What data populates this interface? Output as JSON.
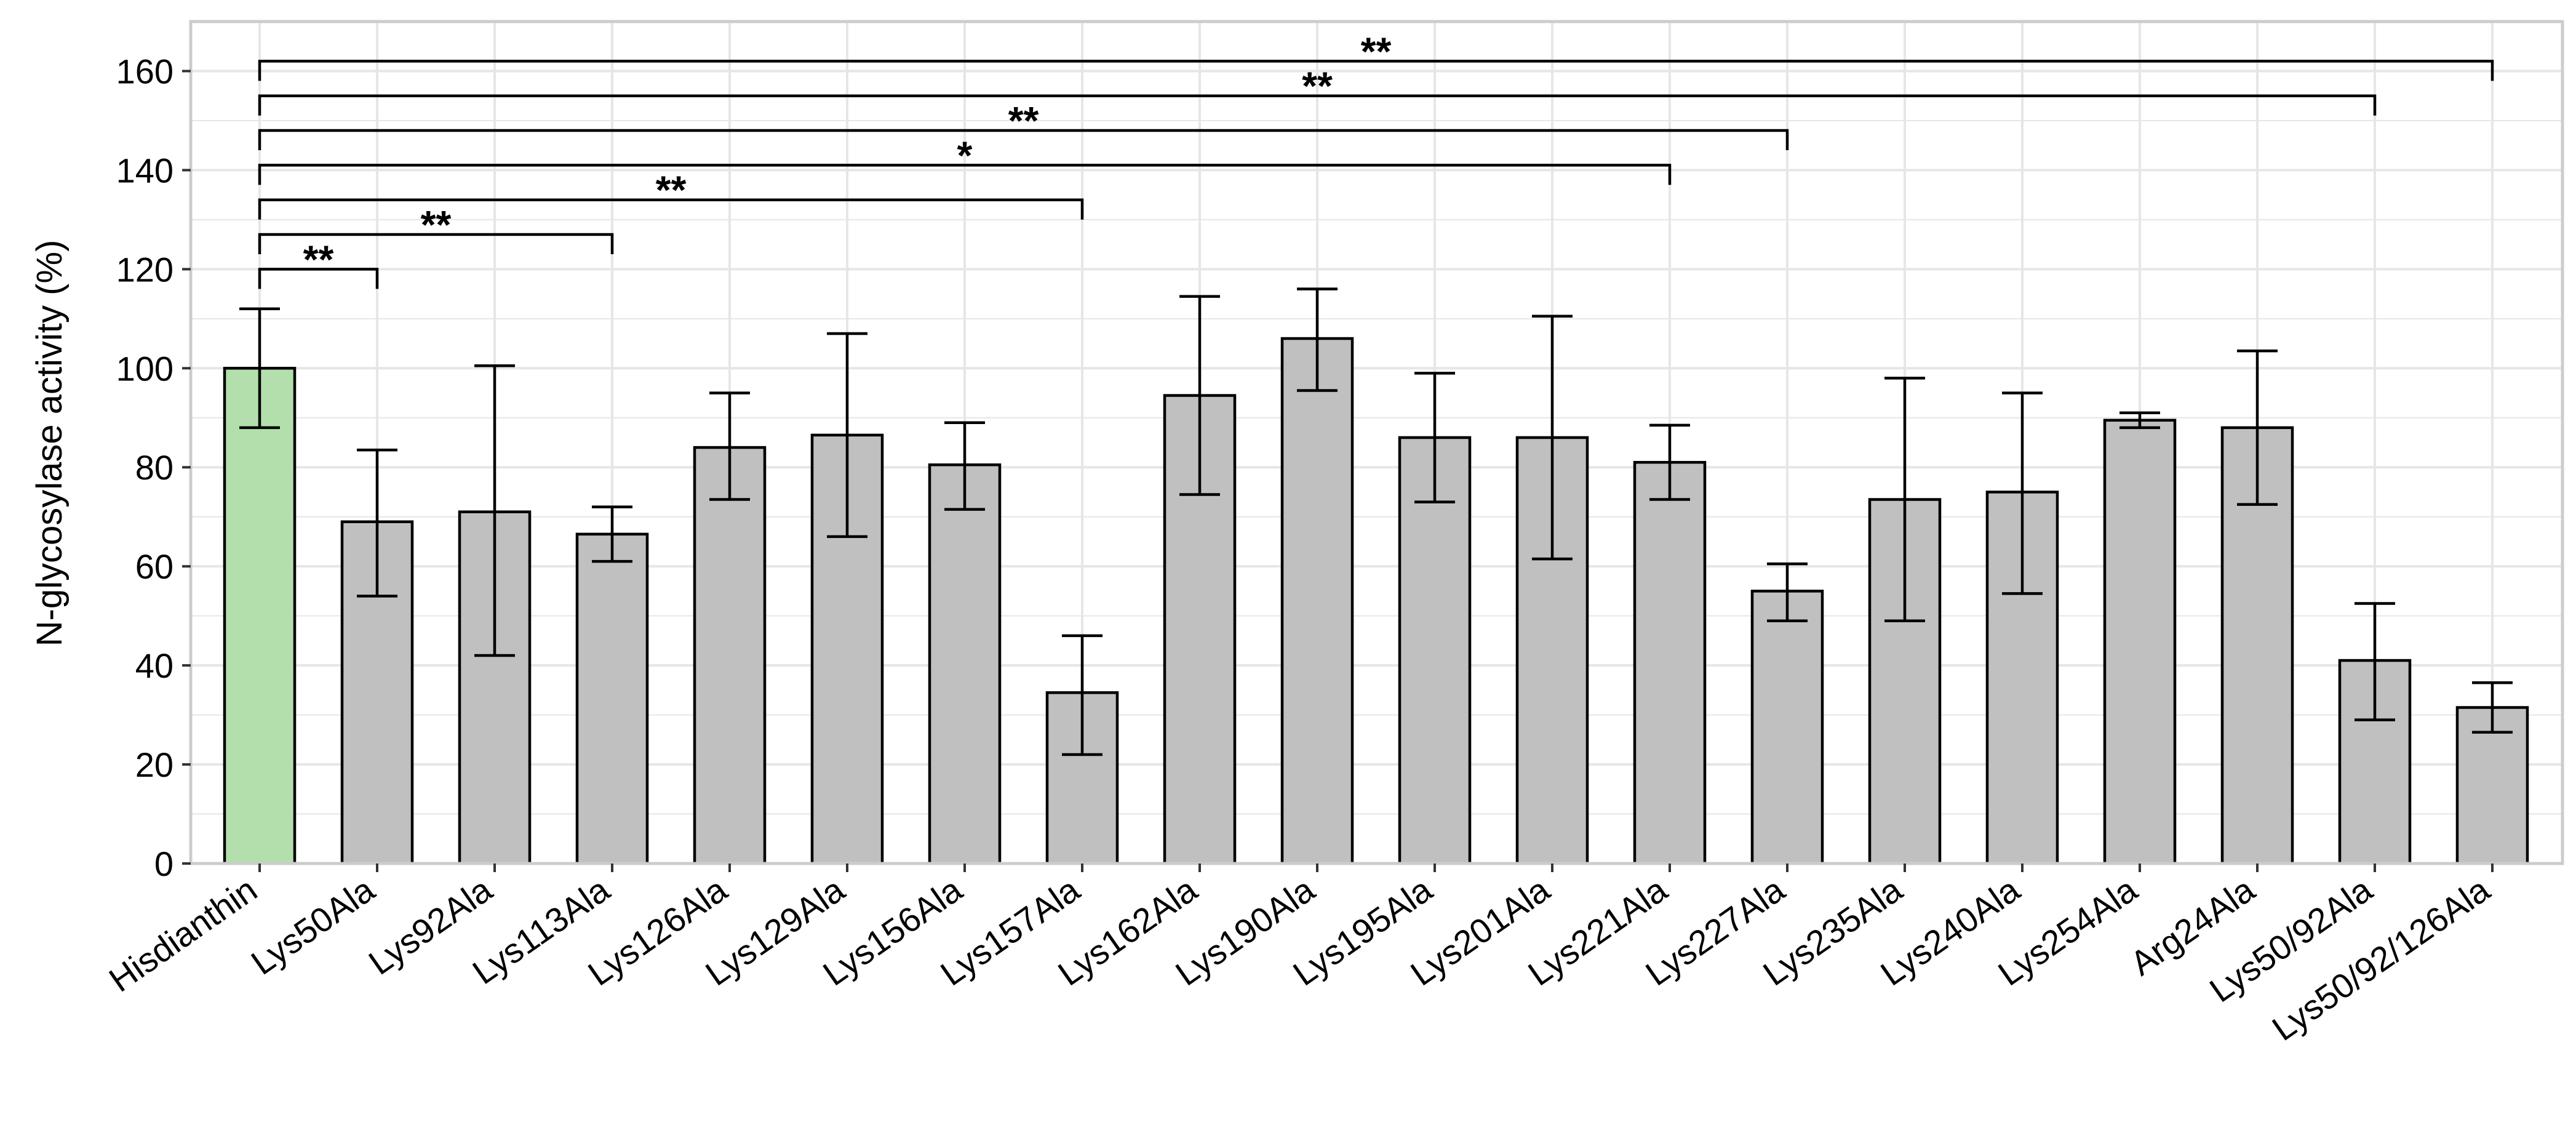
{
  "chart_data": {
    "type": "bar",
    "title": "",
    "xlabel": "",
    "ylabel": "N-glycosylase activity (%)",
    "ylim": [
      0,
      170
    ],
    "yticks": [
      0,
      20,
      40,
      60,
      80,
      100,
      120,
      140,
      160
    ],
    "grid": true,
    "categories": [
      "Hisdianthin",
      "Lys50Ala",
      "Lys92Ala",
      "Lys113Ala",
      "Lys126Ala",
      "Lys129Ala",
      "Lys156Ala",
      "Lys157Ala",
      "Lys162Ala",
      "Lys190Ala",
      "Lys195Ala",
      "Lys201Ala",
      "Lys221Ala",
      "Lys227Ala",
      "Lys235Ala",
      "Lys240Ala",
      "Lys254Ala",
      "Arg24Ala",
      "Lys50/92Ala",
      "Lys50/92/126Ala"
    ],
    "values": [
      100,
      69,
      71,
      66.5,
      84,
      86.5,
      80.5,
      34.5,
      94.5,
      106,
      86,
      86,
      81,
      55,
      73.5,
      75,
      89.5,
      88,
      41,
      31.5
    ],
    "error_upper": [
      112,
      83.5,
      100.5,
      72,
      95,
      107,
      89,
      46,
      114.5,
      116,
      99,
      110.5,
      88.5,
      60.5,
      98,
      95,
      91,
      103.5,
      52.5,
      36.5
    ],
    "error_lower": [
      88,
      54,
      42,
      61,
      73.5,
      66,
      71.5,
      22,
      74.5,
      95.5,
      73,
      61.5,
      73.5,
      49,
      49,
      54.5,
      88,
      72.5,
      29,
      26.5
    ],
    "colors": {
      "reference_bar": "#b2dfab",
      "mutant_bar": "#c0c0c0",
      "outline": "#000000",
      "grid": "#e6e6e6",
      "panel_border": "#cccccc"
    },
    "significance": [
      {
        "from": "Hisdianthin",
        "to": "Lys50Ala",
        "y": 120,
        "label": "**"
      },
      {
        "from": "Hisdianthin",
        "to": "Lys113Ala",
        "y": 127,
        "label": "**"
      },
      {
        "from": "Hisdianthin",
        "to": "Lys157Ala",
        "y": 134,
        "label": "**"
      },
      {
        "from": "Hisdianthin",
        "to": "Lys221Ala",
        "y": 141,
        "label": "*"
      },
      {
        "from": "Hisdianthin",
        "to": "Lys227Ala",
        "y": 148,
        "label": "**"
      },
      {
        "from": "Hisdianthin",
        "to": "Lys50/92Ala",
        "y": 155,
        "label": "**"
      },
      {
        "from": "Hisdianthin",
        "to": "Lys50/92/126Ala",
        "y": 162,
        "label": "**"
      }
    ]
  }
}
